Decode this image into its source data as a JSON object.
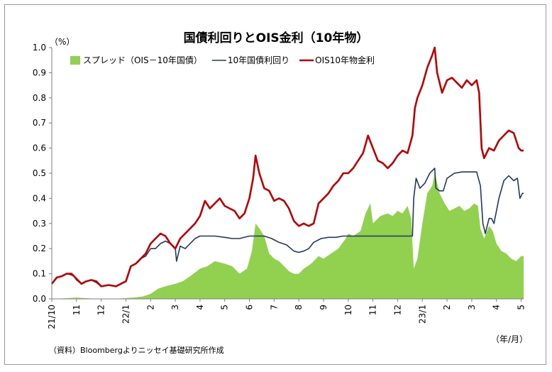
{
  "chart_data": {
    "type": "line",
    "title": "国債利回りとOIS金利（10年物）",
    "y_unit": "（%）",
    "x_unit": "（年/月）",
    "source": "（資料）Bloombergよりニッセイ基礎研究所作成",
    "ylim": [
      0,
      1.0
    ],
    "yticks": [
      "0.0",
      "0.1",
      "0.2",
      "0.3",
      "0.4",
      "0.5",
      "0.6",
      "0.7",
      "0.8",
      "0.9",
      "1.0"
    ],
    "xticks": [
      {
        "label": "21/10",
        "t": 0
      },
      {
        "label": "11",
        "t": 1
      },
      {
        "label": "12",
        "t": 2
      },
      {
        "label": "22/1",
        "t": 3
      },
      {
        "label": "2",
        "t": 4
      },
      {
        "label": "3",
        "t": 5
      },
      {
        "label": "4",
        "t": 6
      },
      {
        "label": "5",
        "t": 7
      },
      {
        "label": "6",
        "t": 8
      },
      {
        "label": "7",
        "t": 9
      },
      {
        "label": "8",
        "t": 10
      },
      {
        "label": "9",
        "t": 11
      },
      {
        "label": "10",
        "t": 12
      },
      {
        "label": "11",
        "t": 13
      },
      {
        "label": "12",
        "t": 14
      },
      {
        "label": "23/1",
        "t": 15
      },
      {
        "label": "2",
        "t": 16
      },
      {
        "label": "3",
        "t": 17
      },
      {
        "label": "4",
        "t": 18
      },
      {
        "label": "5",
        "t": 19
      }
    ],
    "x_max": 19.1,
    "legend_position": "top-left",
    "grid": false,
    "series": [
      {
        "name": "スプレッド（OIS－10年国債）",
        "kind": "area",
        "color": "#92d050",
        "points": [
          [
            0,
            0
          ],
          [
            0.5,
            0.002
          ],
          [
            1,
            0.005
          ],
          [
            1.5,
            0.002
          ],
          [
            2,
            0
          ],
          [
            2.5,
            0
          ],
          [
            3,
            0.003
          ],
          [
            3.3,
            0.005
          ],
          [
            3.7,
            0.01
          ],
          [
            4,
            0.02
          ],
          [
            4.3,
            0.04
          ],
          [
            4.6,
            0.05
          ],
          [
            5,
            0.06
          ],
          [
            5.3,
            0.07
          ],
          [
            5.6,
            0.09
          ],
          [
            6,
            0.12
          ],
          [
            6.3,
            0.13
          ],
          [
            6.6,
            0.15
          ],
          [
            7,
            0.14
          ],
          [
            7.3,
            0.13
          ],
          [
            7.6,
            0.1
          ],
          [
            7.9,
            0.12
          ],
          [
            8.1,
            0.19
          ],
          [
            8.25,
            0.3
          ],
          [
            8.4,
            0.28
          ],
          [
            8.6,
            0.25
          ],
          [
            8.8,
            0.18
          ],
          [
            9,
            0.16
          ],
          [
            9.2,
            0.15
          ],
          [
            9.4,
            0.13
          ],
          [
            9.6,
            0.11
          ],
          [
            9.8,
            0.1
          ],
          [
            10,
            0.1
          ],
          [
            10.2,
            0.12
          ],
          [
            10.5,
            0.14
          ],
          [
            10.8,
            0.17
          ],
          [
            11,
            0.16
          ],
          [
            11.3,
            0.18
          ],
          [
            11.6,
            0.2
          ],
          [
            11.9,
            0.24
          ],
          [
            12,
            0.26
          ],
          [
            12.2,
            0.25
          ],
          [
            12.5,
            0.27
          ],
          [
            12.7,
            0.34
          ],
          [
            12.9,
            0.38
          ],
          [
            13,
            0.3
          ],
          [
            13.3,
            0.33
          ],
          [
            13.6,
            0.34
          ],
          [
            13.8,
            0.33
          ],
          [
            14,
            0.35
          ],
          [
            14.2,
            0.34
          ],
          [
            14.4,
            0.37
          ],
          [
            14.55,
            0.32
          ],
          [
            14.65,
            0.12
          ],
          [
            14.8,
            0.16
          ],
          [
            15,
            0.3
          ],
          [
            15.2,
            0.42
          ],
          [
            15.4,
            0.45
          ],
          [
            15.5,
            0.5
          ],
          [
            15.7,
            0.42
          ],
          [
            15.9,
            0.38
          ],
          [
            16.1,
            0.35
          ],
          [
            16.3,
            0.36
          ],
          [
            16.5,
            0.37
          ],
          [
            16.7,
            0.35
          ],
          [
            16.9,
            0.36
          ],
          [
            17.1,
            0.38
          ],
          [
            17.25,
            0.37
          ],
          [
            17.35,
            0.28
          ],
          [
            17.5,
            0.24
          ],
          [
            17.7,
            0.29
          ],
          [
            17.85,
            0.27
          ],
          [
            18,
            0.22
          ],
          [
            18.2,
            0.19
          ],
          [
            18.4,
            0.18
          ],
          [
            18.6,
            0.16
          ],
          [
            18.8,
            0.15
          ],
          [
            19,
            0.17
          ],
          [
            19.1,
            0.17
          ]
        ]
      },
      {
        "name": "10年国債利回り",
        "kind": "line",
        "color": "#1f3864",
        "points": [
          [
            0,
            0.06
          ],
          [
            0.2,
            0.085
          ],
          [
            0.4,
            0.09
          ],
          [
            0.6,
            0.1
          ],
          [
            0.8,
            0.095
          ],
          [
            0.9,
            0.09
          ],
          [
            1,
            0.075
          ],
          [
            1.2,
            0.06
          ],
          [
            1.4,
            0.07
          ],
          [
            1.6,
            0.075
          ],
          [
            1.8,
            0.065
          ],
          [
            2,
            0.05
          ],
          [
            2.3,
            0.055
          ],
          [
            2.6,
            0.05
          ],
          [
            3,
            0.07
          ],
          [
            3.2,
            0.13
          ],
          [
            3.4,
            0.14
          ],
          [
            3.6,
            0.16
          ],
          [
            3.8,
            0.17
          ],
          [
            4,
            0.2
          ],
          [
            4.2,
            0.2
          ],
          [
            4.4,
            0.22
          ],
          [
            4.6,
            0.23
          ],
          [
            4.8,
            0.22
          ],
          [
            5,
            0.2
          ],
          [
            5.05,
            0.15
          ],
          [
            5.2,
            0.21
          ],
          [
            5.4,
            0.2
          ],
          [
            5.6,
            0.22
          ],
          [
            5.8,
            0.24
          ],
          [
            6,
            0.25
          ],
          [
            6.3,
            0.25
          ],
          [
            6.6,
            0.25
          ],
          [
            7,
            0.245
          ],
          [
            7.3,
            0.24
          ],
          [
            7.6,
            0.24
          ],
          [
            8,
            0.25
          ],
          [
            8.3,
            0.25
          ],
          [
            8.6,
            0.25
          ],
          [
            8.9,
            0.24
          ],
          [
            9.2,
            0.225
          ],
          [
            9.5,
            0.215
          ],
          [
            9.8,
            0.19
          ],
          [
            10,
            0.185
          ],
          [
            10.2,
            0.19
          ],
          [
            10.4,
            0.2
          ],
          [
            10.6,
            0.225
          ],
          [
            10.9,
            0.24
          ],
          [
            11.2,
            0.245
          ],
          [
            11.5,
            0.245
          ],
          [
            11.8,
            0.25
          ],
          [
            12.2,
            0.25
          ],
          [
            12.6,
            0.25
          ],
          [
            13,
            0.25
          ],
          [
            13.4,
            0.25
          ],
          [
            13.8,
            0.25
          ],
          [
            14.2,
            0.25
          ],
          [
            14.6,
            0.25
          ],
          [
            14.65,
            0.4
          ],
          [
            14.75,
            0.48
          ],
          [
            14.9,
            0.44
          ],
          [
            15.1,
            0.46
          ],
          [
            15.3,
            0.5
          ],
          [
            15.5,
            0.52
          ],
          [
            15.55,
            0.44
          ],
          [
            15.7,
            0.43
          ],
          [
            15.85,
            0.43
          ],
          [
            16,
            0.48
          ],
          [
            16.3,
            0.5
          ],
          [
            16.6,
            0.505
          ],
          [
            17,
            0.505
          ],
          [
            17.2,
            0.505
          ],
          [
            17.35,
            0.45
          ],
          [
            17.45,
            0.3
          ],
          [
            17.55,
            0.26
          ],
          [
            17.7,
            0.32
          ],
          [
            17.8,
            0.32
          ],
          [
            17.9,
            0.3
          ],
          [
            18.1,
            0.4
          ],
          [
            18.3,
            0.47
          ],
          [
            18.5,
            0.49
          ],
          [
            18.7,
            0.47
          ],
          [
            18.85,
            0.48
          ],
          [
            18.95,
            0.4
          ],
          [
            19.05,
            0.42
          ],
          [
            19.1,
            0.42
          ]
        ]
      },
      {
        "name": "OIS10年物金利",
        "kind": "line",
        "color": "#c00000",
        "points": [
          [
            0,
            0.06
          ],
          [
            0.2,
            0.085
          ],
          [
            0.4,
            0.09
          ],
          [
            0.6,
            0.1
          ],
          [
            0.8,
            0.1
          ],
          [
            0.9,
            0.09
          ],
          [
            1,
            0.08
          ],
          [
            1.2,
            0.06
          ],
          [
            1.4,
            0.07
          ],
          [
            1.6,
            0.075
          ],
          [
            1.8,
            0.07
          ],
          [
            2,
            0.05
          ],
          [
            2.3,
            0.055
          ],
          [
            2.6,
            0.05
          ],
          [
            3,
            0.07
          ],
          [
            3.2,
            0.13
          ],
          [
            3.4,
            0.14
          ],
          [
            3.6,
            0.16
          ],
          [
            3.8,
            0.18
          ],
          [
            4,
            0.22
          ],
          [
            4.2,
            0.24
          ],
          [
            4.4,
            0.26
          ],
          [
            4.6,
            0.25
          ],
          [
            4.8,
            0.22
          ],
          [
            5,
            0.2
          ],
          [
            5.2,
            0.24
          ],
          [
            5.5,
            0.27
          ],
          [
            5.8,
            0.3
          ],
          [
            6,
            0.33
          ],
          [
            6.2,
            0.39
          ],
          [
            6.4,
            0.36
          ],
          [
            6.6,
            0.38
          ],
          [
            6.8,
            0.4
          ],
          [
            7,
            0.37
          ],
          [
            7.2,
            0.36
          ],
          [
            7.4,
            0.35
          ],
          [
            7.6,
            0.32
          ],
          [
            7.8,
            0.34
          ],
          [
            8,
            0.4
          ],
          [
            8.15,
            0.48
          ],
          [
            8.25,
            0.57
          ],
          [
            8.4,
            0.5
          ],
          [
            8.6,
            0.44
          ],
          [
            8.8,
            0.43
          ],
          [
            9,
            0.39
          ],
          [
            9.2,
            0.4
          ],
          [
            9.4,
            0.39
          ],
          [
            9.6,
            0.36
          ],
          [
            9.8,
            0.31
          ],
          [
            10,
            0.29
          ],
          [
            10.2,
            0.3
          ],
          [
            10.4,
            0.29
          ],
          [
            10.6,
            0.3
          ],
          [
            10.8,
            0.38
          ],
          [
            11,
            0.4
          ],
          [
            11.2,
            0.42
          ],
          [
            11.4,
            0.45
          ],
          [
            11.6,
            0.47
          ],
          [
            11.8,
            0.5
          ],
          [
            12,
            0.5
          ],
          [
            12.2,
            0.52
          ],
          [
            12.4,
            0.55
          ],
          [
            12.6,
            0.58
          ],
          [
            12.8,
            0.65
          ],
          [
            13,
            0.6
          ],
          [
            13.2,
            0.55
          ],
          [
            13.4,
            0.54
          ],
          [
            13.6,
            0.52
          ],
          [
            13.8,
            0.54
          ],
          [
            14,
            0.57
          ],
          [
            14.2,
            0.59
          ],
          [
            14.4,
            0.58
          ],
          [
            14.6,
            0.65
          ],
          [
            14.7,
            0.76
          ],
          [
            14.8,
            0.8
          ],
          [
            15,
            0.85
          ],
          [
            15.2,
            0.92
          ],
          [
            15.4,
            0.97
          ],
          [
            15.5,
            1.0
          ],
          [
            15.6,
            0.9
          ],
          [
            15.8,
            0.82
          ],
          [
            16,
            0.87
          ],
          [
            16.2,
            0.88
          ],
          [
            16.4,
            0.86
          ],
          [
            16.6,
            0.84
          ],
          [
            16.8,
            0.87
          ],
          [
            17,
            0.85
          ],
          [
            17.2,
            0.87
          ],
          [
            17.3,
            0.82
          ],
          [
            17.4,
            0.6
          ],
          [
            17.5,
            0.56
          ],
          [
            17.7,
            0.6
          ],
          [
            17.9,
            0.59
          ],
          [
            18.1,
            0.63
          ],
          [
            18.3,
            0.65
          ],
          [
            18.5,
            0.67
          ],
          [
            18.7,
            0.66
          ],
          [
            18.9,
            0.6
          ],
          [
            19,
            0.59
          ],
          [
            19.1,
            0.59
          ]
        ]
      }
    ]
  }
}
